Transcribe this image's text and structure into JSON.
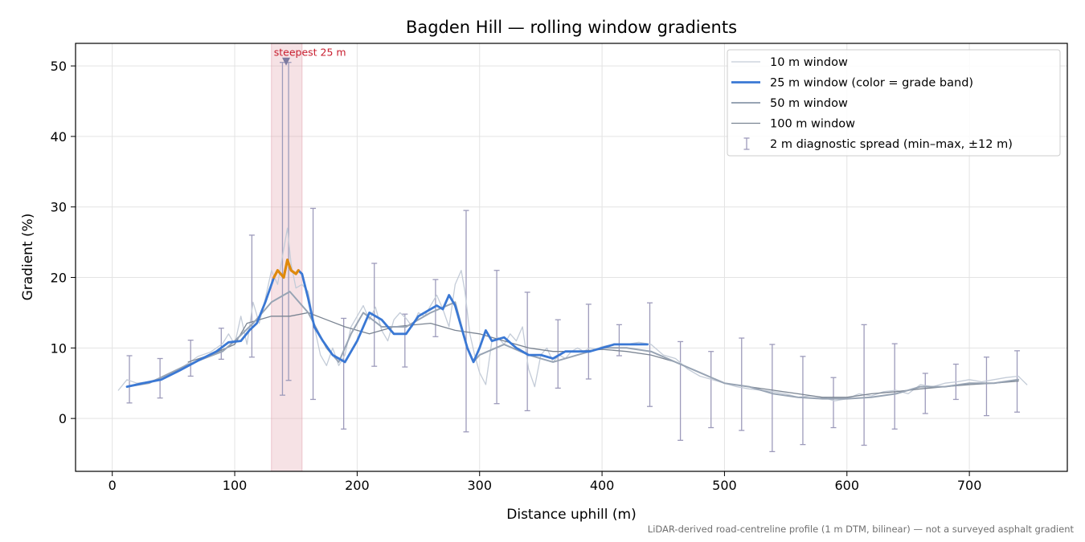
{
  "chart_data": {
    "type": "line",
    "title": "Bagden Hill — rolling window gradients",
    "xlabel": "Distance uphill (m)",
    "ylabel": "Gradient (%)",
    "xlim": [
      -30,
      780
    ],
    "ylim": [
      -7.5,
      53.2
    ],
    "xticks": [
      0,
      100,
      200,
      300,
      400,
      500,
      600,
      700
    ],
    "yticks": [
      0,
      10,
      20,
      30,
      40,
      50
    ],
    "grid": true,
    "legend_position": "top-right",
    "colors": {
      "w10": "#c4ccd8",
      "w25": "#3a78d4",
      "w25_steep": "#e08a0b",
      "w50": "#98a4b4",
      "w100": "#7a8492",
      "errorbar": "#9d9bbb",
      "highlight": "#e3a7b0",
      "marker": "#7c7aa0",
      "annotation": "#c81d2e"
    },
    "highlight_band": {
      "x_start": 130,
      "x_end": 155
    },
    "annotation": {
      "text": "steepest 25 m",
      "x": 142,
      "y": 50.5
    },
    "legend": [
      {
        "label": "10 m window",
        "key": "w10"
      },
      {
        "label": "25 m window (color = grade band)",
        "key": "w25"
      },
      {
        "label": "50 m window",
        "key": "w50"
      },
      {
        "label": "100 m window",
        "key": "w100"
      },
      {
        "label": "2 m diagnostic spread (min–max, ±12 m)",
        "key": "errorbar"
      }
    ],
    "series": [
      {
        "name": "10 m window",
        "key": "w10",
        "x": [
          5,
          12,
          20,
          30,
          40,
          50,
          60,
          70,
          80,
          90,
          95,
          100,
          105,
          110,
          115,
          120,
          125,
          130,
          135,
          140,
          143,
          146,
          150,
          155,
          160,
          165,
          170,
          175,
          180,
          185,
          190,
          195,
          200,
          205,
          210,
          215,
          220,
          225,
          230,
          235,
          240,
          245,
          250,
          255,
          260,
          265,
          270,
          275,
          280,
          285,
          288,
          292,
          296,
          300,
          305,
          310,
          315,
          320,
          325,
          330,
          335,
          340,
          345,
          350,
          355,
          360,
          365,
          370,
          375,
          380,
          385,
          390,
          395,
          400,
          410,
          420,
          430,
          440,
          450,
          460,
          470,
          480,
          490,
          500,
          510,
          520,
          530,
          540,
          550,
          560,
          570,
          580,
          590,
          600,
          610,
          620,
          630,
          640,
          650,
          660,
          670,
          680,
          690,
          700,
          710,
          720,
          730,
          740,
          747
        ],
        "y": [
          4,
          5.5,
          5,
          5.2,
          5.8,
          6.5,
          7.6,
          8.8,
          9.4,
          10.6,
          12,
          10.5,
          14.5,
          10.5,
          16.5,
          13.5,
          17,
          21,
          19,
          24,
          27,
          22,
          18.5,
          19,
          18,
          13,
          9,
          7.5,
          10,
          7.5,
          9,
          13,
          14.5,
          16,
          14,
          15.8,
          12.5,
          11,
          14,
          15,
          14.2,
          13,
          15,
          14.5,
          16,
          17.5,
          15.5,
          13,
          19,
          21,
          18,
          12,
          9,
          6.5,
          4.8,
          11,
          11.5,
          10.5,
          12,
          11,
          13,
          7,
          4.5,
          9,
          10,
          8,
          9,
          8.5,
          9.5,
          10,
          9.5,
          10,
          9.8,
          10.2,
          10.5,
          10.5,
          10.8,
          10.5,
          9,
          8.5,
          7,
          6,
          5.5,
          5,
          4.5,
          4.2,
          4,
          3.8,
          3.5,
          3,
          3.2,
          3,
          2.5,
          2.8,
          3.5,
          3.2,
          3.8,
          4,
          3.5,
          4.8,
          4.5,
          5,
          5.2,
          5.5,
          5.2,
          5.5,
          5.8,
          6,
          4.8
        ]
      },
      {
        "name": "25 m window",
        "key": "w25",
        "x": [
          12,
          25,
          40,
          55,
          70,
          85,
          95,
          105,
          112,
          118,
          125,
          132,
          135,
          140,
          143,
          146,
          150,
          152,
          155,
          160,
          165,
          172,
          180,
          190,
          200,
          210,
          220,
          230,
          240,
          250,
          260,
          265,
          270,
          275,
          280,
          285,
          290,
          295,
          300,
          305,
          310,
          320,
          330,
          340,
          350,
          360,
          370,
          380,
          390,
          400,
          410,
          420,
          430,
          437
        ],
        "y": [
          4.5,
          5,
          5.5,
          6.8,
          8.2,
          9.5,
          10.8,
          11,
          12.5,
          13.5,
          16.5,
          20,
          21,
          20,
          22.5,
          21,
          20.5,
          21,
          20.5,
          17,
          13,
          11,
          9,
          8,
          11,
          15,
          14,
          12,
          12,
          14.5,
          15.5,
          16,
          15.5,
          17.5,
          16,
          13,
          10,
          8,
          10,
          12.5,
          11,
          11.5,
          10,
          9,
          9,
          8.5,
          9.5,
          9.5,
          9.5,
          10,
          10.5,
          10.5,
          10.5,
          10.5
        ],
        "bands": [
          {
            "from": 130,
            "to": 152,
            "color_key": "w25_steep"
          }
        ]
      },
      {
        "name": "50 m window",
        "key": "w50",
        "x": [
          12,
          30,
          60,
          90,
          100,
          115,
          130,
          145,
          160,
          175,
          185,
          195,
          205,
          220,
          240,
          260,
          280,
          290,
          295,
          300,
          320,
          340,
          360,
          380,
          400,
          420,
          440,
          460,
          480,
          500,
          520,
          540,
          560,
          580,
          600,
          620,
          640,
          660,
          680,
          700,
          720,
          740
        ],
        "y": [
          4.5,
          5,
          7.5,
          9.5,
          11,
          13.5,
          16.5,
          18,
          15,
          10,
          8,
          12,
          15,
          13,
          13,
          15,
          16.5,
          10,
          8,
          9,
          10.5,
          9,
          8,
          9,
          10,
          10,
          9.5,
          8,
          6.5,
          5,
          4.5,
          3.5,
          3,
          2.8,
          2.8,
          3,
          3.5,
          4.5,
          4.5,
          5,
          5,
          5.5
        ]
      },
      {
        "name": "100 m window",
        "key": "w100",
        "x": [
          62,
          80,
          100,
          110,
          130,
          145,
          160,
          175,
          190,
          210,
          230,
          260,
          280,
          300,
          320,
          340,
          360,
          380,
          400,
          420,
          440,
          460,
          480,
          500,
          520,
          540,
          560,
          580,
          600,
          620,
          640,
          660,
          680,
          700,
          720,
          740
        ],
        "y": [
          8,
          9,
          10.5,
          13.5,
          14.5,
          14.5,
          15,
          14,
          13,
          12,
          13,
          13.5,
          12.5,
          12,
          11,
          10,
          9.5,
          9.5,
          9.8,
          9.5,
          9,
          8,
          6.5,
          5,
          4.5,
          4,
          3.5,
          3,
          3,
          3.5,
          3.8,
          4.2,
          4.5,
          4.8,
          5,
          5.3
        ]
      }
    ],
    "errorbars": {
      "name": "2 m diagnostic spread (min–max, ±12 m)",
      "points": [
        {
          "x": 14,
          "min": 2.2,
          "max": 8.9
        },
        {
          "x": 39,
          "min": 2.9,
          "max": 8.5
        },
        {
          "x": 64,
          "min": 6.0,
          "max": 11.1
        },
        {
          "x": 89,
          "min": 8.4,
          "max": 12.8
        },
        {
          "x": 114,
          "min": 8.7,
          "max": 26.0
        },
        {
          "x": 139,
          "min": 3.3,
          "max": 50.5
        },
        {
          "x": 144,
          "min": 5.4,
          "max": 50.5
        },
        {
          "x": 164,
          "min": 2.7,
          "max": 29.8
        },
        {
          "x": 189,
          "min": -1.5,
          "max": 14.2
        },
        {
          "x": 214,
          "min": 7.4,
          "max": 22.0
        },
        {
          "x": 239,
          "min": 7.3,
          "max": 14.8
        },
        {
          "x": 264,
          "min": 11.6,
          "max": 19.7
        },
        {
          "x": 289,
          "min": -1.9,
          "max": 29.5
        },
        {
          "x": 314,
          "min": 2.1,
          "max": 21.0
        },
        {
          "x": 339,
          "min": 1.1,
          "max": 17.9
        },
        {
          "x": 364,
          "min": 4.3,
          "max": 14.0
        },
        {
          "x": 389,
          "min": 5.6,
          "max": 16.2
        },
        {
          "x": 414,
          "min": 8.9,
          "max": 13.3
        },
        {
          "x": 439,
          "min": 1.7,
          "max": 16.4
        },
        {
          "x": 464,
          "min": -3.1,
          "max": 10.9
        },
        {
          "x": 489,
          "min": -1.3,
          "max": 9.5
        },
        {
          "x": 514,
          "min": -1.7,
          "max": 11.4
        },
        {
          "x": 539,
          "min": -4.7,
          "max": 10.5
        },
        {
          "x": 564,
          "min": -3.7,
          "max": 8.8
        },
        {
          "x": 589,
          "min": -1.3,
          "max": 5.8
        },
        {
          "x": 614,
          "min": -3.8,
          "max": 13.3
        },
        {
          "x": 639,
          "min": -1.5,
          "max": 10.6
        },
        {
          "x": 664,
          "min": 0.7,
          "max": 6.4
        },
        {
          "x": 689,
          "min": 2.7,
          "max": 7.7
        },
        {
          "x": 714,
          "min": 0.4,
          "max": 8.7
        },
        {
          "x": 739,
          "min": 0.9,
          "max": 9.6
        }
      ]
    }
  },
  "caption": "LiDAR-derived road-centreline profile (1 m DTM, bilinear) — not a surveyed asphalt gradient"
}
